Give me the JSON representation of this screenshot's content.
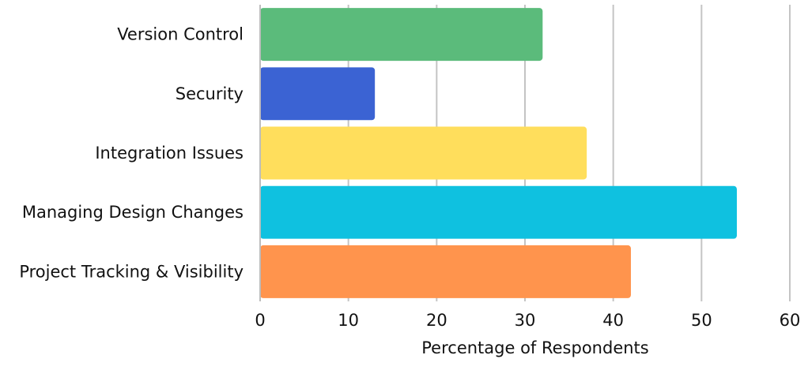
{
  "chart_data": {
    "type": "bar",
    "orientation": "horizontal",
    "categories": [
      "Version Control",
      "Security",
      "Integration Issues",
      "Managing Design Changes",
      "Project Tracking & Visibility"
    ],
    "values": [
      32,
      13,
      37,
      54,
      42
    ],
    "colors": [
      "#5bbb7b",
      "#3b63d3",
      "#ffde5c",
      "#0fc1e0",
      "#ff944d"
    ],
    "title": "",
    "xlabel": "Percentage of Respondents",
    "ylabel": "",
    "xlim": [
      0,
      60
    ],
    "xticks": [
      0,
      10,
      20,
      30,
      40,
      50,
      60
    ],
    "xtick_labels": [
      "0",
      "10",
      "20",
      "30",
      "40",
      "50",
      "60"
    ],
    "grid": "vertical",
    "legend": "none"
  }
}
